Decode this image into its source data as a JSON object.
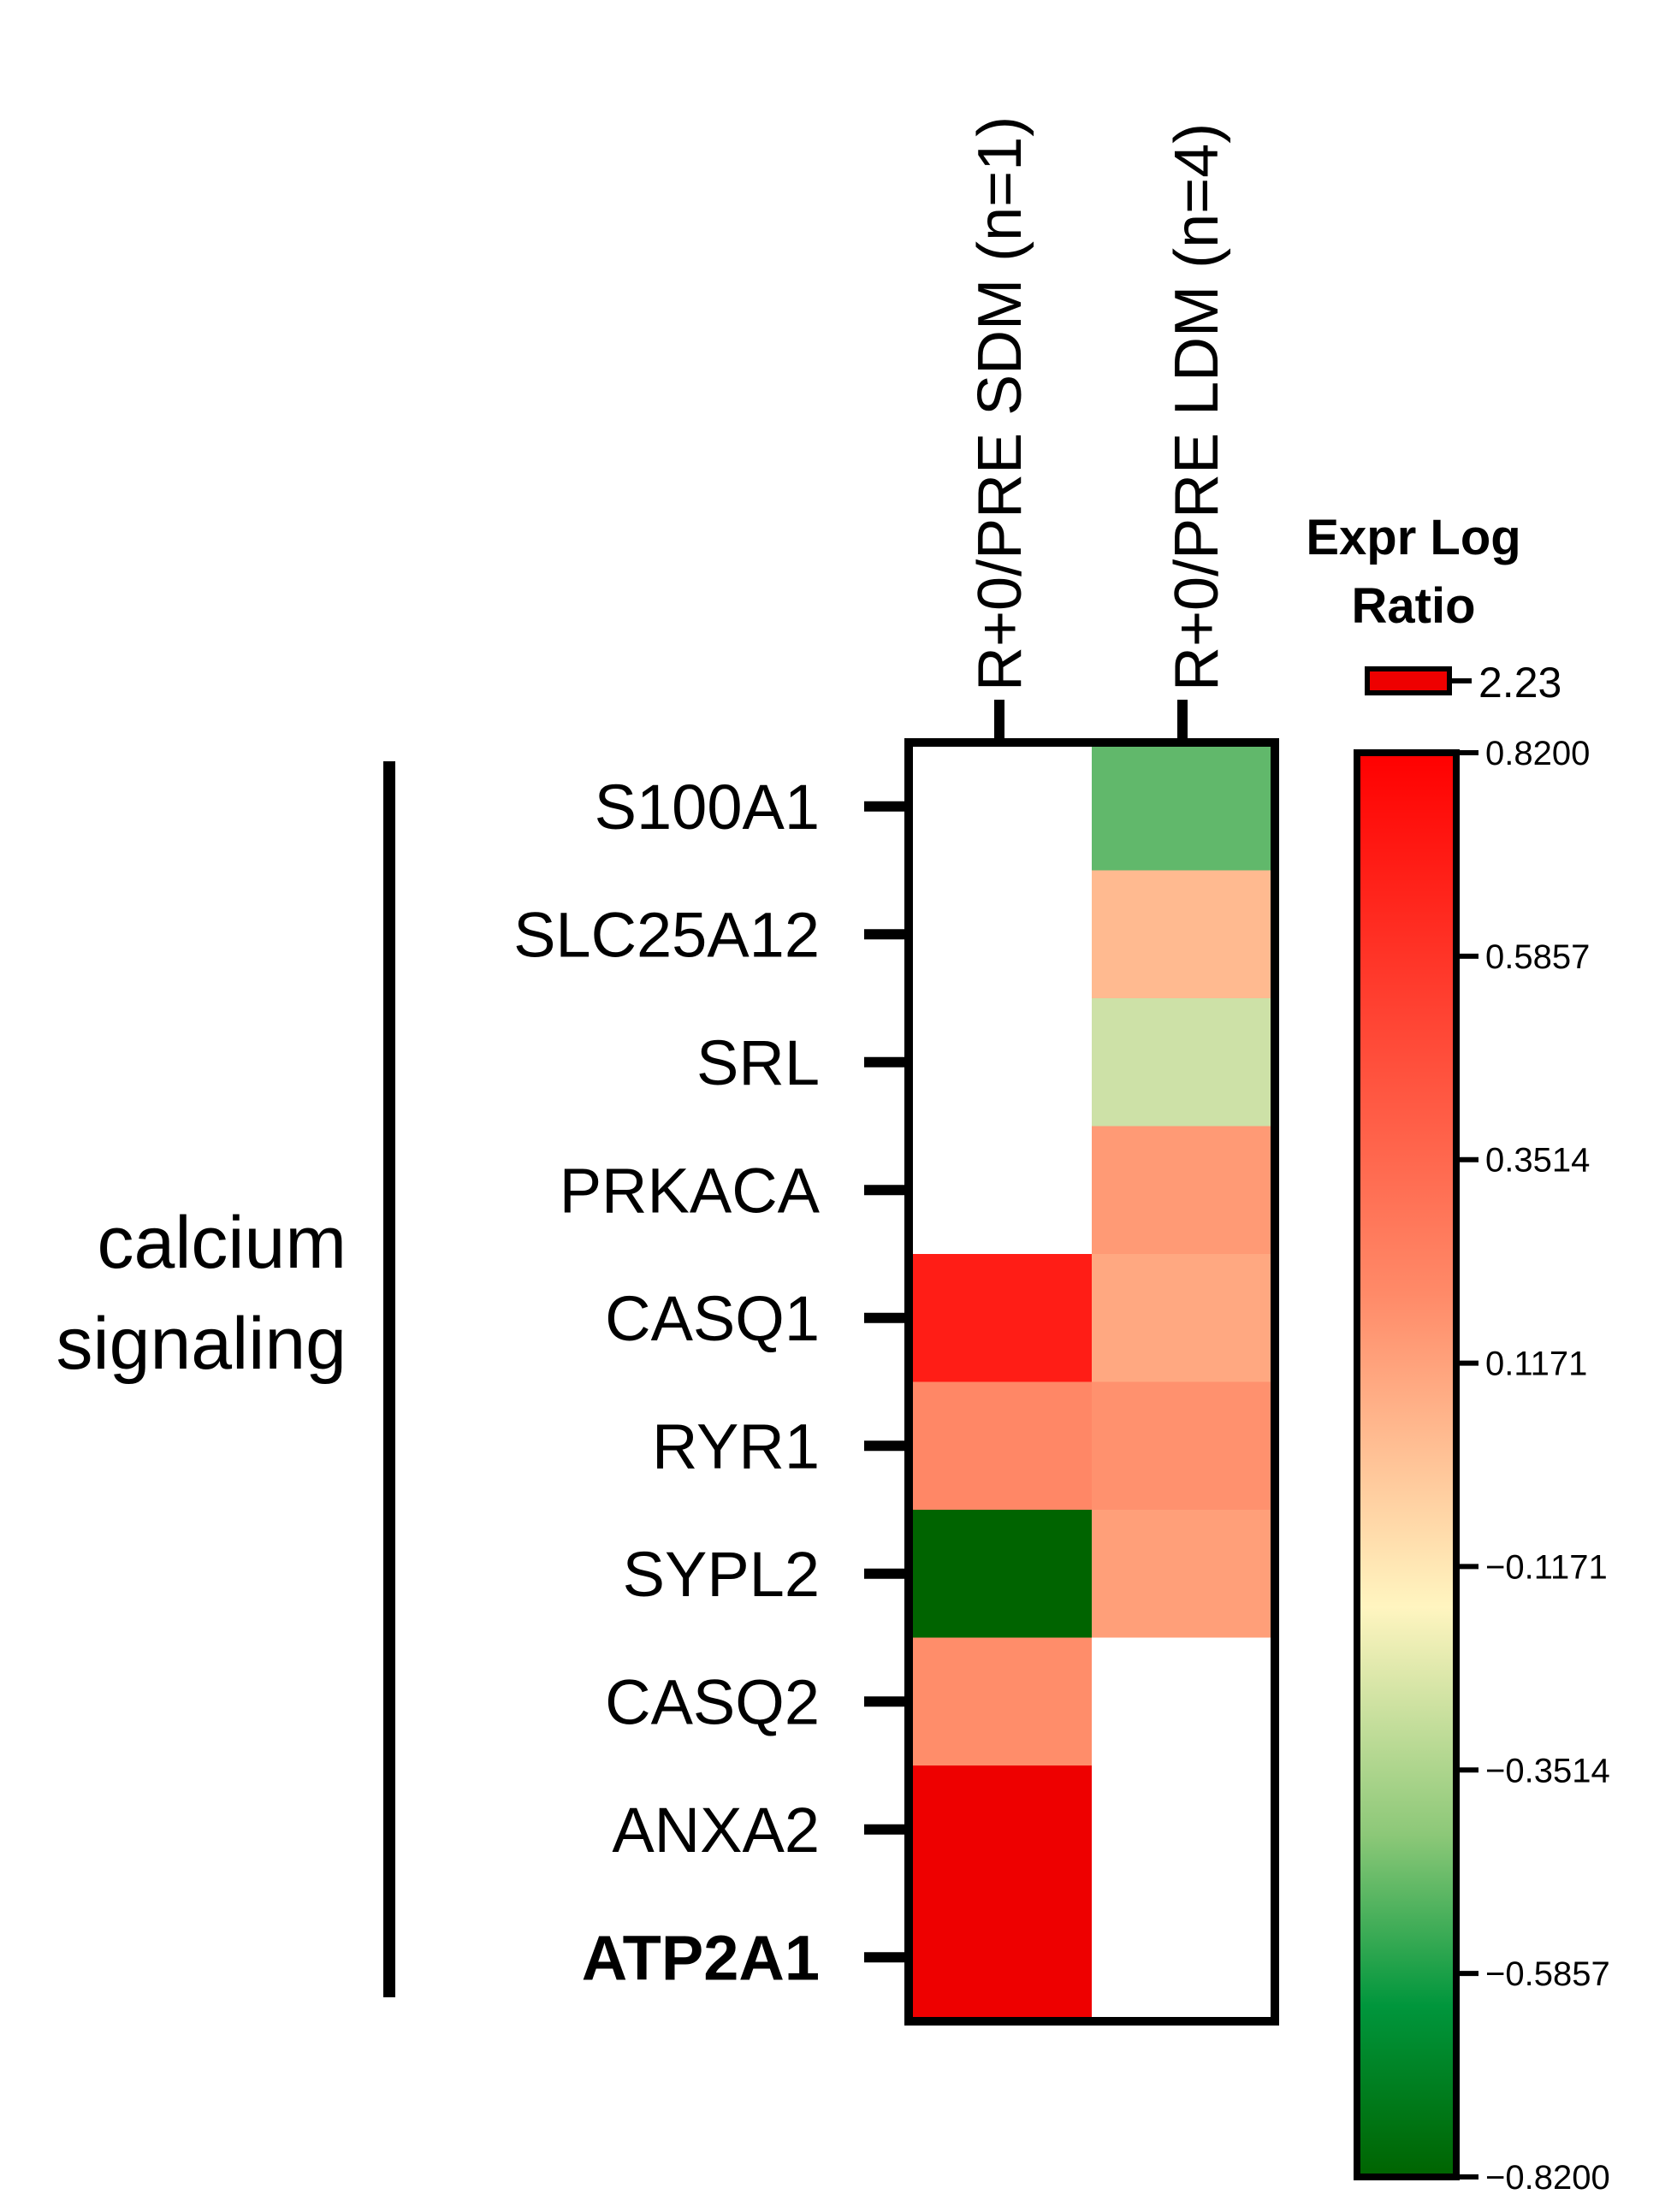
{
  "chart_data": {
    "type": "heatmap",
    "group_label_lines": [
      "calcium",
      "signaling"
    ],
    "columns": [
      "R+0/PRE SDM (n=1)",
      "R+0/PRE LDM (n=4)"
    ],
    "rows": [
      "S100A1",
      "SLC25A12",
      "SRL",
      "PRKACA",
      "CASQ1",
      "RYR1",
      "SYPL2",
      "CASQ2",
      "ANXA2",
      "ATP2A1"
    ],
    "bold_rows": [
      "ATP2A1"
    ],
    "values": [
      [
        null,
        -0.45
      ],
      [
        null,
        0.14
      ],
      [
        null,
        -0.22
      ],
      [
        null,
        0.28
      ],
      [
        0.72,
        0.22
      ],
      [
        0.36,
        0.32
      ],
      [
        -0.82,
        0.26
      ],
      [
        0.34,
        null
      ],
      [
        0.95,
        null
      ],
      [
        2.23,
        null
      ]
    ],
    "value_notes": "ATP2A1 SDM value exceeds scale max (marked on legend as 2.23)",
    "legend": {
      "title_lines": [
        "Expr Log",
        "Ratio"
      ],
      "overflow_value": 2.23,
      "overflow_label": "2.23",
      "ticks": [
        {
          "value": 0.82,
          "label": "0.8200"
        },
        {
          "value": 0.5857,
          "label": "0.5857"
        },
        {
          "value": 0.3514,
          "label": "0.3514"
        },
        {
          "value": 0.1171,
          "label": "0.1171"
        },
        {
          "value": -0.1171,
          "label": "−0.1171"
        },
        {
          "value": -0.3514,
          "label": "−0.3514"
        },
        {
          "value": -0.5857,
          "label": "−0.5857"
        },
        {
          "value": -0.82,
          "label": "−0.8200"
        }
      ],
      "min": -0.82,
      "max": 0.82
    },
    "colors": {
      "high": "#ff0000",
      "mid_high": "#ffbf94",
      "mid": "#fdf7c8",
      "mid_low": "#a8d08d",
      "low": "#006400",
      "overflow": "#ee0000",
      "missing": "#ffffff",
      "frame": "#000000"
    }
  }
}
